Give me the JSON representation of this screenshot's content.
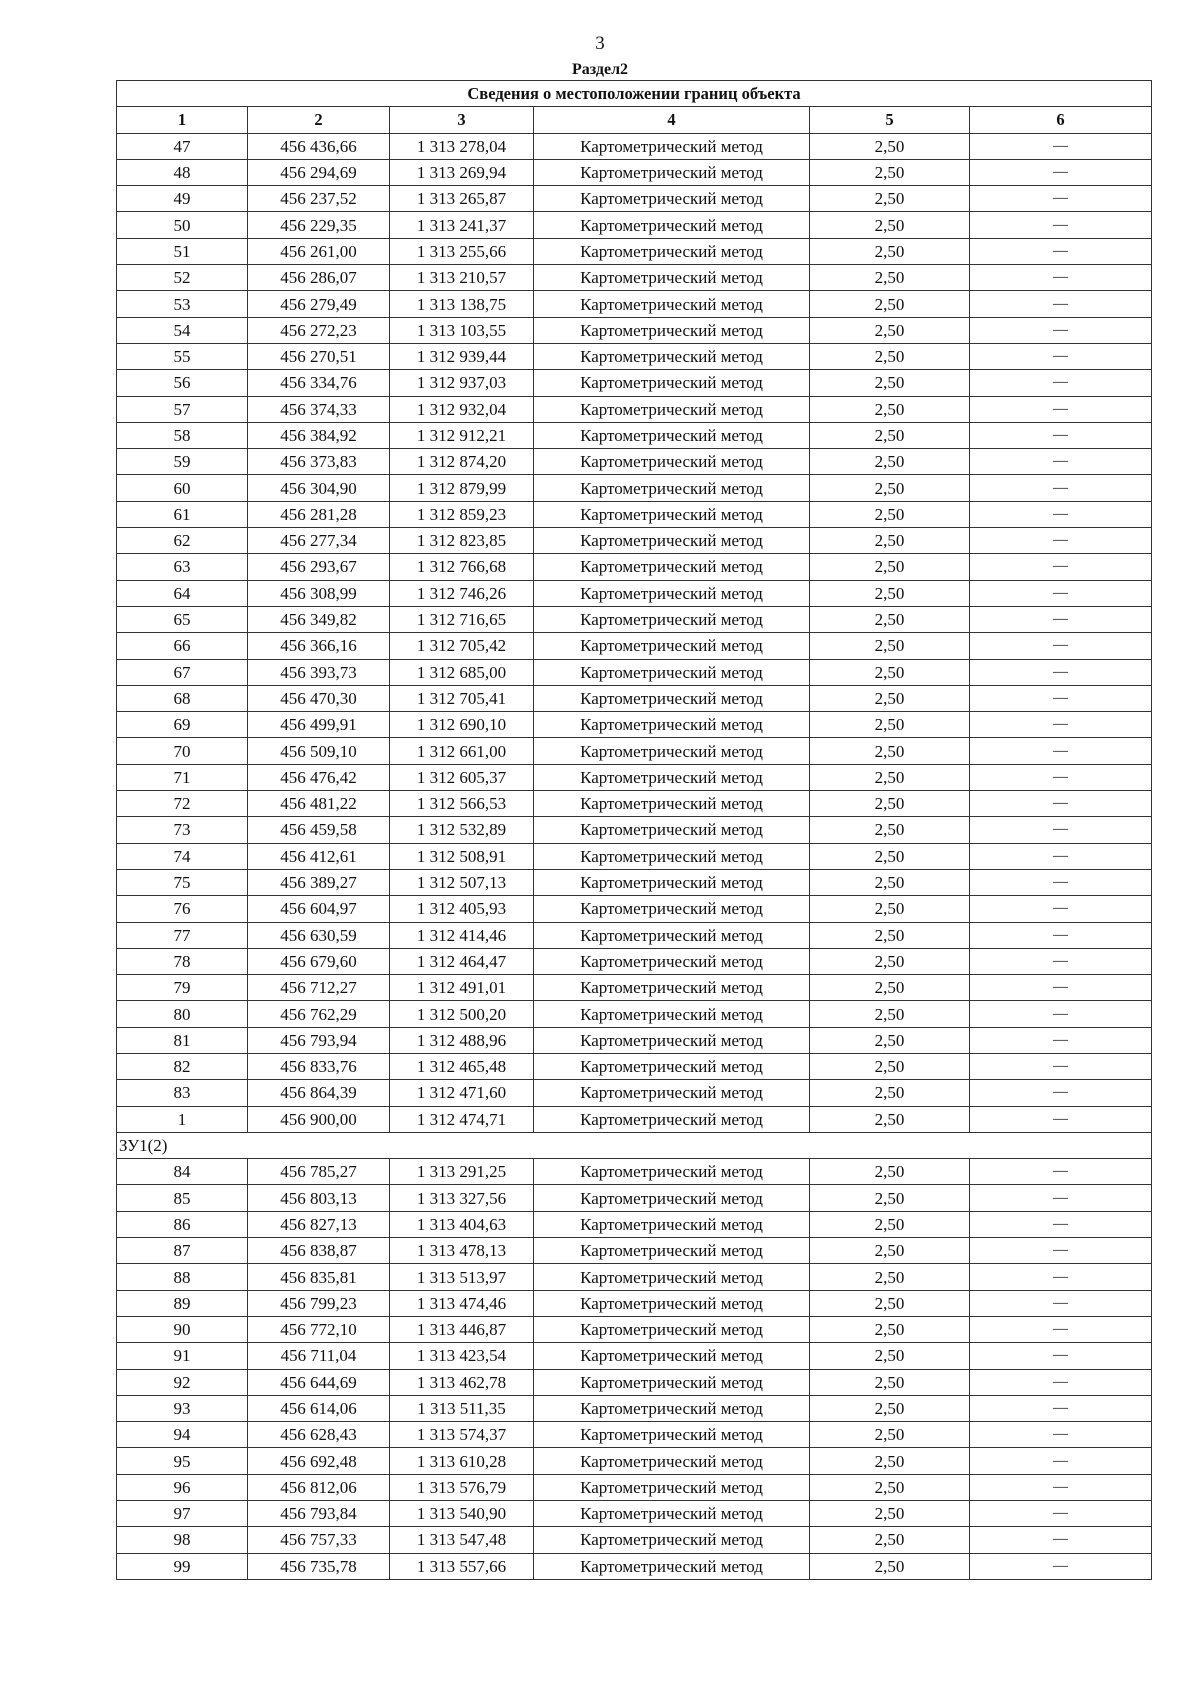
{
  "page_number": "3",
  "section_title": "Раздел2",
  "table": {
    "title": "Сведения о местоположении границ объекта",
    "columns": [
      "1",
      "2",
      "3",
      "4",
      "5",
      "6"
    ],
    "groups": [
      {
        "label": "",
        "rows": [
          [
            "47",
            "456 436,66",
            "1 313 278,04",
            "Картометрический метод",
            "2,50",
            "—"
          ],
          [
            "48",
            "456 294,69",
            "1 313 269,94",
            "Картометрический метод",
            "2,50",
            "—"
          ],
          [
            "49",
            "456 237,52",
            "1 313 265,87",
            "Картометрический метод",
            "2,50",
            "—"
          ],
          [
            "50",
            "456 229,35",
            "1 313 241,37",
            "Картометрический метод",
            "2,50",
            "—"
          ],
          [
            "51",
            "456 261,00",
            "1 313 255,66",
            "Картометрический метод",
            "2,50",
            "—"
          ],
          [
            "52",
            "456 286,07",
            "1 313 210,57",
            "Картометрический метод",
            "2,50",
            "—"
          ],
          [
            "53",
            "456 279,49",
            "1 313 138,75",
            "Картометрический метод",
            "2,50",
            "—"
          ],
          [
            "54",
            "456 272,23",
            "1 313 103,55",
            "Картометрический метод",
            "2,50",
            "—"
          ],
          [
            "55",
            "456 270,51",
            "1 312 939,44",
            "Картометрический метод",
            "2,50",
            "—"
          ],
          [
            "56",
            "456 334,76",
            "1 312 937,03",
            "Картометрический метод",
            "2,50",
            "—"
          ],
          [
            "57",
            "456 374,33",
            "1 312 932,04",
            "Картометрический метод",
            "2,50",
            "—"
          ],
          [
            "58",
            "456 384,92",
            "1 312 912,21",
            "Картометрический метод",
            "2,50",
            "—"
          ],
          [
            "59",
            "456 373,83",
            "1 312 874,20",
            "Картометрический метод",
            "2,50",
            "—"
          ],
          [
            "60",
            "456 304,90",
            "1 312 879,99",
            "Картометрический метод",
            "2,50",
            "—"
          ],
          [
            "61",
            "456 281,28",
            "1 312 859,23",
            "Картометрический метод",
            "2,50",
            "—"
          ],
          [
            "62",
            "456 277,34",
            "1 312 823,85",
            "Картометрический метод",
            "2,50",
            "—"
          ],
          [
            "63",
            "456 293,67",
            "1 312 766,68",
            "Картометрический метод",
            "2,50",
            "—"
          ],
          [
            "64",
            "456 308,99",
            "1 312 746,26",
            "Картометрический метод",
            "2,50",
            "—"
          ],
          [
            "65",
            "456 349,82",
            "1 312 716,65",
            "Картометрический метод",
            "2,50",
            "—"
          ],
          [
            "66",
            "456 366,16",
            "1 312 705,42",
            "Картометрический метод",
            "2,50",
            "—"
          ],
          [
            "67",
            "456 393,73",
            "1 312 685,00",
            "Картометрический метод",
            "2,50",
            "—"
          ],
          [
            "68",
            "456 470,30",
            "1 312 705,41",
            "Картометрический метод",
            "2,50",
            "—"
          ],
          [
            "69",
            "456 499,91",
            "1 312 690,10",
            "Картометрический метод",
            "2,50",
            "—"
          ],
          [
            "70",
            "456 509,10",
            "1 312 661,00",
            "Картометрический метод",
            "2,50",
            "—"
          ],
          [
            "71",
            "456 476,42",
            "1 312 605,37",
            "Картометрический метод",
            "2,50",
            "—"
          ],
          [
            "72",
            "456 481,22",
            "1 312 566,53",
            "Картометрический метод",
            "2,50",
            "—"
          ],
          [
            "73",
            "456 459,58",
            "1 312 532,89",
            "Картометрический метод",
            "2,50",
            "—"
          ],
          [
            "74",
            "456 412,61",
            "1 312 508,91",
            "Картометрический метод",
            "2,50",
            "—"
          ],
          [
            "75",
            "456 389,27",
            "1 312 507,13",
            "Картометрический метод",
            "2,50",
            "—"
          ],
          [
            "76",
            "456 604,97",
            "1 312 405,93",
            "Картометрический метод",
            "2,50",
            "—"
          ],
          [
            "77",
            "456 630,59",
            "1 312 414,46",
            "Картометрический метод",
            "2,50",
            "—"
          ],
          [
            "78",
            "456 679,60",
            "1 312 464,47",
            "Картометрический метод",
            "2,50",
            "—"
          ],
          [
            "79",
            "456 712,27",
            "1 312 491,01",
            "Картометрический метод",
            "2,50",
            "—"
          ],
          [
            "80",
            "456 762,29",
            "1 312 500,20",
            "Картометрический метод",
            "2,50",
            "—"
          ],
          [
            "81",
            "456 793,94",
            "1 312 488,96",
            "Картометрический метод",
            "2,50",
            "—"
          ],
          [
            "82",
            "456 833,76",
            "1 312 465,48",
            "Картометрический метод",
            "2,50",
            "—"
          ],
          [
            "83",
            "456 864,39",
            "1 312 471,60",
            "Картометрический метод",
            "2,50",
            "—"
          ],
          [
            "1",
            "456 900,00",
            "1 312 474,71",
            "Картометрический метод",
            "2,50",
            "—"
          ]
        ]
      },
      {
        "label": "ЗУ1(2)",
        "rows": [
          [
            "84",
            "456 785,27",
            "1 313 291,25",
            "Картометрический метод",
            "2,50",
            "—"
          ],
          [
            "85",
            "456 803,13",
            "1 313 327,56",
            "Картометрический метод",
            "2,50",
            "—"
          ],
          [
            "86",
            "456 827,13",
            "1 313 404,63",
            "Картометрический метод",
            "2,50",
            "—"
          ],
          [
            "87",
            "456 838,87",
            "1 313 478,13",
            "Картометрический метод",
            "2,50",
            "—"
          ],
          [
            "88",
            "456 835,81",
            "1 313 513,97",
            "Картометрический метод",
            "2,50",
            "—"
          ],
          [
            "89",
            "456 799,23",
            "1 313 474,46",
            "Картометрический метод",
            "2,50",
            "—"
          ],
          [
            "90",
            "456 772,10",
            "1 313 446,87",
            "Картометрический метод",
            "2,50",
            "—"
          ],
          [
            "91",
            "456 711,04",
            "1 313 423,54",
            "Картометрический метод",
            "2,50",
            "—"
          ],
          [
            "92",
            "456 644,69",
            "1 313 462,78",
            "Картометрический метод",
            "2,50",
            "—"
          ],
          [
            "93",
            "456 614,06",
            "1 313 511,35",
            "Картометрический метод",
            "2,50",
            "—"
          ],
          [
            "94",
            "456 628,43",
            "1 313 574,37",
            "Картометрический метод",
            "2,50",
            "—"
          ],
          [
            "95",
            "456 692,48",
            "1 313 610,28",
            "Картометрический метод",
            "2,50",
            "—"
          ],
          [
            "96",
            "456 812,06",
            "1 313 576,79",
            "Картометрический метод",
            "2,50",
            "—"
          ],
          [
            "97",
            "456 793,84",
            "1 313 540,90",
            "Картометрический метод",
            "2,50",
            "—"
          ],
          [
            "98",
            "456 757,33",
            "1 313 547,48",
            "Картометрический метод",
            "2,50",
            "—"
          ],
          [
            "99",
            "456 735,78",
            "1 313 557,66",
            "Картометрический метод",
            "2,50",
            "—"
          ]
        ]
      }
    ]
  }
}
